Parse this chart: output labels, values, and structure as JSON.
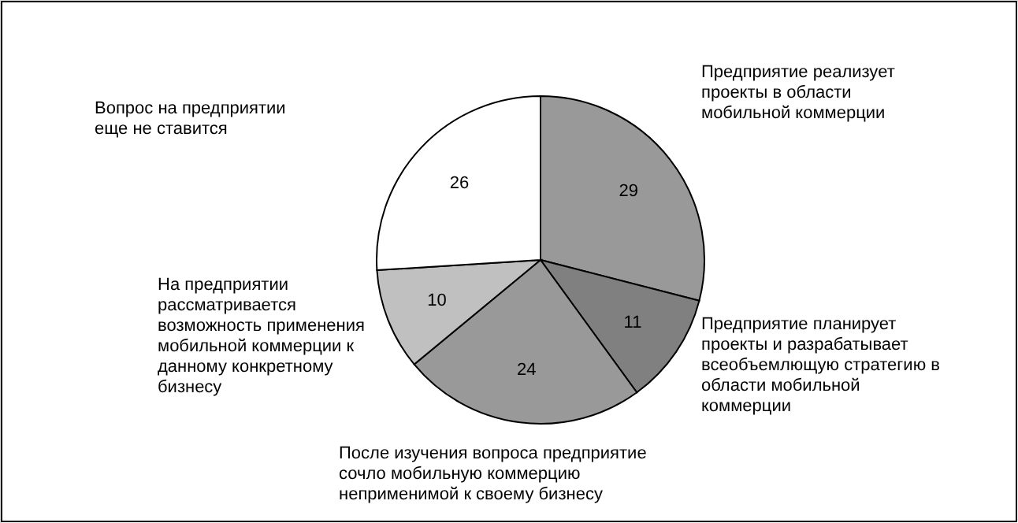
{
  "chart_data": {
    "type": "pie",
    "categories": [
      "Предприятие реализует\nпроекты в области\nмобильной коммерции",
      "Предприятие планирует\nпроекты и разрабатывает\nвсеобъемлющую стратегию в\nобласти мобильной\nкоммерции",
      "После изучения вопроса предприятие\nсочло мобильную коммерцию\nнеприменимой к своему бизнесу",
      "На предприятии\nрассматривается\nвозможность применения\nмобильной коммерции к\nданному конкретному\nбизнесу",
      "Вопрос на предприятии\nеще не ставится"
    ],
    "values": [
      29,
      11,
      24,
      10,
      26
    ],
    "colors": [
      "#999999",
      "#808080",
      "#999999",
      "#c0c0c0",
      "#ffffff"
    ],
    "data_labels": true
  }
}
